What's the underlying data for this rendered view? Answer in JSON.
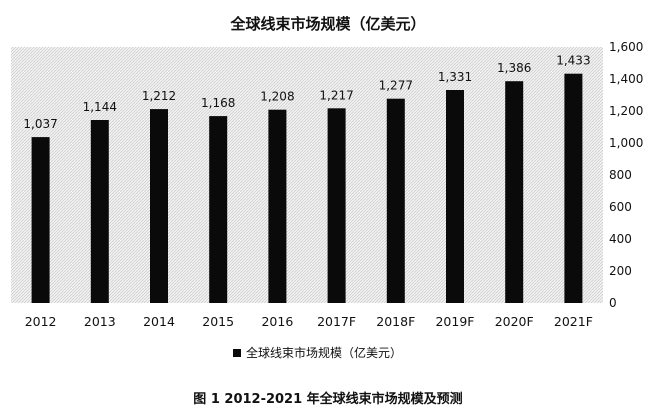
{
  "chart_data": {
    "type": "bar",
    "title": "全球线束市场规模（亿美元）",
    "categories": [
      "2012",
      "2013",
      "2014",
      "2015",
      "2016",
      "2017F",
      "2018F",
      "2019F",
      "2020F",
      "2021F"
    ],
    "series": [
      {
        "name": "全球线束市场规模（亿美元）",
        "values": [
          1037,
          1144,
          1212,
          1168,
          1208,
          1217,
          1277,
          1331,
          1386,
          1433
        ],
        "labels": [
          "1,037",
          "1,144",
          "1,212",
          "1,168",
          "1,208",
          "1,217",
          "1,277",
          "1,331",
          "1,386",
          "1,433"
        ]
      }
    ],
    "y_ticks": [
      "0",
      "200",
      "400",
      "600",
      "800",
      "1,000",
      "1,200",
      "1,400",
      "1,600"
    ],
    "ylim": [
      0,
      1600
    ],
    "y_axis_side": "right",
    "legend_position": "bottom",
    "grid": false,
    "bar_color": "#0a0a0a",
    "plot_background": "hatched light gray"
  },
  "caption": "图 1  2012-2021 年全球线束市场规模及预测"
}
